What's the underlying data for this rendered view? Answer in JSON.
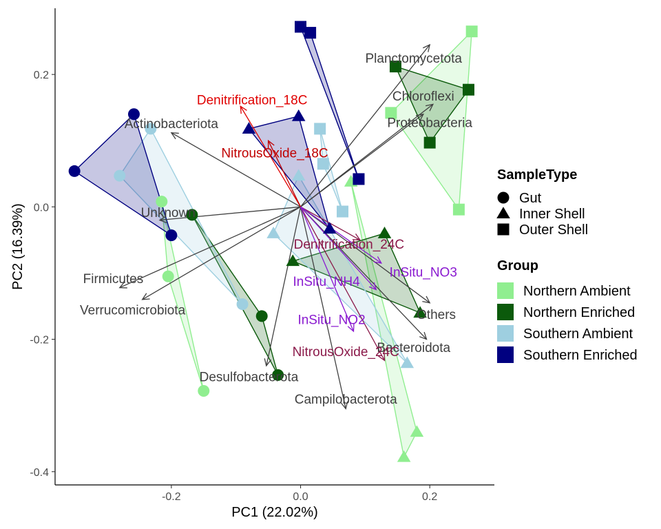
{
  "chart_data": {
    "type": "scatter",
    "xlabel": "PC1 (22.02%)",
    "ylabel": "PC2 (16.39%)",
    "xlim": [
      -0.38,
      0.3
    ],
    "ylim": [
      -0.42,
      0.3
    ],
    "x_ticks": [
      {
        "value": -0.2,
        "label": "-0.2"
      },
      {
        "value": 0.0,
        "label": "0.0"
      },
      {
        "value": 0.2,
        "label": "0.2"
      }
    ],
    "y_ticks": [
      {
        "value": 0.2,
        "label": "0.2"
      },
      {
        "value": 0.0,
        "label": "0.0"
      },
      {
        "value": -0.2,
        "label": "-0.2"
      },
      {
        "value": -0.4,
        "label": "-0.4"
      }
    ],
    "grid": false,
    "groups": [
      {
        "name": "Northern Ambient",
        "color": "#90EE90"
      },
      {
        "name": "Northern Enriched",
        "color": "#0B5A0B"
      },
      {
        "name": "Southern Ambient",
        "color": "#9ECFE0"
      },
      {
        "name": "Southern Enriched",
        "color": "#000080"
      }
    ],
    "sample_types": [
      {
        "name": "Gut",
        "shape": "circle"
      },
      {
        "name": "Inner Shell",
        "shape": "triangle"
      },
      {
        "name": "Outer Shell",
        "shape": "square"
      }
    ],
    "legend_placement": "right",
    "legend_titles": {
      "shape": "SampleType",
      "color": "Group"
    },
    "points": [
      {
        "x": -0.215,
        "y": 0.008,
        "group": "Northern Ambient",
        "type": "Gut"
      },
      {
        "x": -0.205,
        "y": -0.105,
        "group": "Northern Ambient",
        "type": "Gut"
      },
      {
        "x": -0.15,
        "y": -0.278,
        "group": "Northern Ambient",
        "type": "Gut"
      },
      {
        "x": -0.168,
        "y": -0.012,
        "group": "Northern Enriched",
        "type": "Gut"
      },
      {
        "x": -0.06,
        "y": -0.165,
        "group": "Northern Enriched",
        "type": "Gut"
      },
      {
        "x": -0.035,
        "y": -0.254,
        "group": "Northern Enriched",
        "type": "Gut"
      },
      {
        "x": -0.232,
        "y": 0.118,
        "group": "Southern Ambient",
        "type": "Gut"
      },
      {
        "x": -0.28,
        "y": 0.047,
        "group": "Southern Ambient",
        "type": "Gut"
      },
      {
        "x": -0.09,
        "y": -0.147,
        "group": "Southern Ambient",
        "type": "Gut"
      },
      {
        "x": -0.258,
        "y": 0.14,
        "group": "Southern Enriched",
        "type": "Gut"
      },
      {
        "x": -0.35,
        "y": 0.054,
        "group": "Southern Enriched",
        "type": "Gut"
      },
      {
        "x": -0.2,
        "y": -0.043,
        "group": "Southern Enriched",
        "type": "Gut"
      },
      {
        "x": 0.078,
        "y": 0.038,
        "group": "Northern Ambient",
        "type": "Inner Shell"
      },
      {
        "x": 0.16,
        "y": -0.378,
        "group": "Northern Ambient",
        "type": "Inner Shell"
      },
      {
        "x": 0.18,
        "y": -0.34,
        "group": "Northern Ambient",
        "type": "Inner Shell"
      },
      {
        "x": 0.13,
        "y": -0.04,
        "group": "Northern Enriched",
        "type": "Inner Shell"
      },
      {
        "x": -0.012,
        "y": -0.082,
        "group": "Northern Enriched",
        "type": "Inner Shell"
      },
      {
        "x": 0.185,
        "y": -0.16,
        "group": "Northern Enriched",
        "type": "Inner Shell"
      },
      {
        "x": -0.003,
        "y": 0.047,
        "group": "Southern Ambient",
        "type": "Inner Shell"
      },
      {
        "x": -0.042,
        "y": -0.04,
        "group": "Southern Ambient",
        "type": "Inner Shell"
      },
      {
        "x": 0.165,
        "y": -0.236,
        "group": "Southern Ambient",
        "type": "Inner Shell"
      },
      {
        "x": -0.08,
        "y": 0.118,
        "group": "Southern Enriched",
        "type": "Inner Shell"
      },
      {
        "x": -0.003,
        "y": 0.137,
        "group": "Southern Enriched",
        "type": "Inner Shell"
      },
      {
        "x": 0.045,
        "y": -0.033,
        "group": "Southern Enriched",
        "type": "Inner Shell"
      },
      {
        "x": 0.265,
        "y": 0.265,
        "group": "Northern Ambient",
        "type": "Outer Shell"
      },
      {
        "x": 0.14,
        "y": 0.142,
        "group": "Northern Ambient",
        "type": "Outer Shell"
      },
      {
        "x": 0.245,
        "y": -0.004,
        "group": "Northern Ambient",
        "type": "Outer Shell"
      },
      {
        "x": 0.147,
        "y": 0.212,
        "group": "Northern Enriched",
        "type": "Outer Shell"
      },
      {
        "x": 0.26,
        "y": 0.177,
        "group": "Northern Enriched",
        "type": "Outer Shell"
      },
      {
        "x": 0.2,
        "y": 0.097,
        "group": "Northern Enriched",
        "type": "Outer Shell"
      },
      {
        "x": 0.03,
        "y": 0.118,
        "group": "Southern Ambient",
        "type": "Outer Shell"
      },
      {
        "x": 0.035,
        "y": 0.065,
        "group": "Southern Ambient",
        "type": "Outer Shell"
      },
      {
        "x": 0.065,
        "y": -0.007,
        "group": "Southern Ambient",
        "type": "Outer Shell"
      },
      {
        "x": 0.0,
        "y": 0.272,
        "group": "Southern Enriched",
        "type": "Outer Shell"
      },
      {
        "x": 0.015,
        "y": 0.263,
        "group": "Southern Enriched",
        "type": "Outer Shell"
      },
      {
        "x": 0.09,
        "y": 0.042,
        "group": "Southern Enriched",
        "type": "Outer Shell"
      }
    ],
    "arrows": [
      {
        "label": "Planctomycetota",
        "x": 0.2,
        "y": 0.245,
        "color": "#404040",
        "label_x": 0.175,
        "label_y": 0.225
      },
      {
        "label": "Chloroflexi",
        "x": 0.205,
        "y": 0.155,
        "color": "#404040",
        "label_x": 0.19,
        "label_y": 0.168
      },
      {
        "label": "Proteobacteria",
        "x": 0.19,
        "y": 0.14,
        "color": "#404040",
        "label_x": 0.2,
        "label_y": 0.128
      },
      {
        "label": "Actinobacteriota",
        "x": -0.2,
        "y": 0.112,
        "color": "#404040",
        "label_x": -0.2,
        "label_y": 0.126
      },
      {
        "label": "Unknown",
        "x": -0.218,
        "y": -0.02,
        "color": "#404040",
        "label_x": -0.205,
        "label_y": -0.008
      },
      {
        "label": "Firmicutes",
        "x": -0.28,
        "y": -0.122,
        "color": "#404040",
        "label_x": -0.29,
        "label_y": -0.108
      },
      {
        "label": "Verrucomicrobiota",
        "x": -0.245,
        "y": -0.14,
        "color": "#404040",
        "label_x": -0.26,
        "label_y": -0.155
      },
      {
        "label": "Desulfobacterota",
        "x": -0.053,
        "y": -0.24,
        "color": "#404040",
        "label_x": -0.08,
        "label_y": -0.256
      },
      {
        "label": "Campilobacterota",
        "x": 0.07,
        "y": -0.305,
        "color": "#404040",
        "label_x": 0.07,
        "label_y": -0.29
      },
      {
        "label": "Bacteroidota",
        "x": 0.195,
        "y": -0.2,
        "color": "#404040",
        "label_x": 0.175,
        "label_y": -0.212
      },
      {
        "label": "Others",
        "x": 0.2,
        "y": -0.145,
        "color": "#404040",
        "label_x": 0.21,
        "label_y": -0.162
      },
      {
        "label": "Denitrification_18C",
        "x": -0.093,
        "y": 0.152,
        "color": "#E00000",
        "label_x": -0.075,
        "label_y": 0.162
      },
      {
        "label": "NitrousOxide_18C",
        "x": -0.05,
        "y": 0.1,
        "color": "#C00000",
        "label_x": -0.04,
        "label_y": 0.082
      },
      {
        "label": "Denitrification_24C",
        "x": 0.092,
        "y": -0.05,
        "color": "#8B1A4A",
        "label_x": 0.075,
        "label_y": -0.056
      },
      {
        "label": "NitrousOxide_24C",
        "x": 0.13,
        "y": -0.232,
        "color": "#8B1A4A",
        "label_x": 0.07,
        "label_y": -0.218
      },
      {
        "label": "InSitu_NO3",
        "x": 0.125,
        "y": -0.085,
        "color": "#8A1AD0",
        "label_x": 0.19,
        "label_y": -0.098
      },
      {
        "label": "InSitu_NH4",
        "x": 0.117,
        "y": -0.125,
        "color": "#8A1AD0",
        "label_x": 0.04,
        "label_y": -0.112
      },
      {
        "label": "InSitu_NO2",
        "x": 0.082,
        "y": -0.188,
        "color": "#8A1AD0",
        "label_x": 0.048,
        "label_y": -0.17
      }
    ]
  }
}
